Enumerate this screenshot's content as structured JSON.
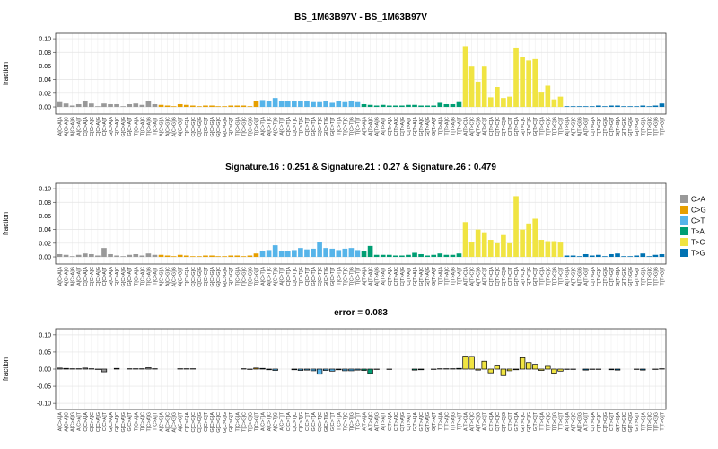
{
  "chart_data": [
    {
      "type": "bar",
      "title": "BS_1M63B97V - BS_1M63B97V",
      "y_label": "fraction",
      "categories": [
        "A[C>A]A",
        "A[C>A]C",
        "A[C>A]G",
        "A[C>A]T",
        "C[C>A]A",
        "C[C>A]C",
        "C[C>A]G",
        "C[C>A]T",
        "G[C>A]A",
        "G[C>A]C",
        "G[C>A]G",
        "G[C>A]T",
        "T[C>A]A",
        "T[C>A]C",
        "T[C>A]G",
        "T[C>A]T",
        "A[C>G]A",
        "A[C>G]C",
        "A[C>G]G",
        "A[C>G]T",
        "C[C>G]A",
        "C[C>G]C",
        "C[C>G]G",
        "C[C>G]T",
        "G[C>G]A",
        "G[C>G]C",
        "G[C>G]G",
        "G[C>G]T",
        "T[C>G]A",
        "T[C>G]C",
        "T[C>G]G",
        "T[C>G]T",
        "A[C>T]A",
        "A[C>T]C",
        "A[C>T]G",
        "A[C>T]T",
        "C[C>T]A",
        "C[C>T]C",
        "C[C>T]G",
        "C[C>T]T",
        "G[C>T]A",
        "G[C>T]C",
        "G[C>T]G",
        "G[C>T]T",
        "T[C>T]A",
        "T[C>T]C",
        "T[C>T]G",
        "T[C>T]T",
        "A[T>A]A",
        "A[T>A]C",
        "A[T>A]G",
        "A[T>A]T",
        "C[T>A]A",
        "C[T>A]C",
        "C[T>A]G",
        "C[T>A]T",
        "G[T>A]A",
        "G[T>A]C",
        "G[T>A]G",
        "G[T>A]T",
        "T[T>A]A",
        "T[T>A]C",
        "T[T>A]G",
        "T[T>A]T",
        "A[T>C]A",
        "A[T>C]C",
        "A[T>C]G",
        "A[T>C]T",
        "C[T>C]A",
        "C[T>C]C",
        "C[T>C]G",
        "C[T>C]T",
        "G[T>C]A",
        "G[T>C]C",
        "G[T>C]G",
        "G[T>C]T",
        "T[T>C]A",
        "T[T>C]C",
        "T[T>C]G",
        "T[T>C]T",
        "A[T>G]A",
        "A[T>G]C",
        "A[T>G]G",
        "A[T>G]T",
        "C[T>G]A",
        "C[T>G]C",
        "C[T>G]G",
        "C[T>G]T",
        "G[T>G]A",
        "G[T>G]C",
        "G[T>G]G",
        "G[T>G]T",
        "T[T>G]A",
        "T[T>G]C",
        "T[T>G]G",
        "T[T>G]T"
      ],
      "values": [
        0.007,
        0.005,
        0.002,
        0.004,
        0.008,
        0.005,
        0.001,
        0.005,
        0.004,
        0.004,
        0.001,
        0.004,
        0.005,
        0.003,
        0.009,
        0.004,
        0.003,
        0.002,
        0.001,
        0.004,
        0.003,
        0.002,
        0.001,
        0.002,
        0.002,
        0.001,
        0.001,
        0.002,
        0.002,
        0.002,
        0.001,
        0.008,
        0.01,
        0.008,
        0.013,
        0.009,
        0.009,
        0.008,
        0.009,
        0.008,
        0.007,
        0.007,
        0.009,
        0.006,
        0.008,
        0.007,
        0.008,
        0.007,
        0.004,
        0.003,
        0.002,
        0.003,
        0.002,
        0.002,
        0.002,
        0.003,
        0.003,
        0.002,
        0.002,
        0.002,
        0.006,
        0.004,
        0.004,
        0.007,
        0.089,
        0.059,
        0.037,
        0.059,
        0.014,
        0.029,
        0.013,
        0.015,
        0.087,
        0.073,
        0.068,
        0.07,
        0.021,
        0.031,
        0.011,
        0.015,
        0.001,
        0.001,
        0.001,
        0.001,
        0.001,
        0.002,
        0.001,
        0.002,
        0.002,
        0.001,
        0.001,
        0.001,
        0.002,
        0.001,
        0.002,
        0.005
      ],
      "colors": [
        "#999999",
        "#E69F00",
        "#56B4E9",
        "#009E73",
        "#F0E442",
        "#0072B2"
      ],
      "ylim": [
        -0.0105,
        0.108
      ],
      "yticks": [
        {
          "value": 0,
          "label": "0.00"
        },
        {
          "value": 0.02,
          "label": "0.02"
        },
        {
          "value": 0.04,
          "label": "0.04"
        },
        {
          "value": 0.06,
          "label": "0.06"
        },
        {
          "value": 0.08,
          "label": "0.08"
        },
        {
          "value": 0.1,
          "label": "0.10"
        }
      ],
      "grid": true
    },
    {
      "type": "bar",
      "title": "Signature.16 : 0.251 & Signature.21 : 0.27 & Signature.26 : 0.479",
      "y_label": "fraction",
      "categories": [
        "A[C>A]A",
        "A[C>A]C",
        "A[C>A]G",
        "A[C>A]T",
        "C[C>A]A",
        "C[C>A]C",
        "C[C>A]G",
        "C[C>A]T",
        "G[C>A]A",
        "G[C>A]C",
        "G[C>A]G",
        "G[C>A]T",
        "T[C>A]A",
        "T[C>A]C",
        "T[C>A]G",
        "T[C>A]T",
        "A[C>G]A",
        "A[C>G]C",
        "A[C>G]G",
        "A[C>G]T",
        "C[C>G]A",
        "C[C>G]C",
        "C[C>G]G",
        "C[C>G]T",
        "G[C>G]A",
        "G[C>G]C",
        "G[C>G]G",
        "G[C>G]T",
        "T[C>G]A",
        "T[C>G]C",
        "T[C>G]G",
        "T[C>G]T",
        "A[C>T]A",
        "A[C>T]C",
        "A[C>T]G",
        "A[C>T]T",
        "C[C>T]A",
        "C[C>T]C",
        "C[C>T]G",
        "C[C>T]T",
        "G[C>T]A",
        "G[C>T]C",
        "G[C>T]G",
        "G[C>T]T",
        "T[C>T]A",
        "T[C>T]C",
        "T[C>T]G",
        "T[C>T]T",
        "A[T>A]A",
        "A[T>A]C",
        "A[T>A]G",
        "A[T>A]T",
        "C[T>A]A",
        "C[T>A]C",
        "C[T>A]G",
        "C[T>A]T",
        "G[T>A]A",
        "G[T>A]C",
        "G[T>A]G",
        "G[T>A]T",
        "T[T>A]A",
        "T[T>A]C",
        "T[T>A]G",
        "T[T>A]T",
        "A[T>C]A",
        "A[T>C]C",
        "A[T>C]G",
        "A[T>C]T",
        "C[T>C]A",
        "C[T>C]C",
        "C[T>C]G",
        "C[T>C]T",
        "G[T>C]A",
        "G[T>C]C",
        "G[T>C]G",
        "G[T>C]T",
        "T[T>C]A",
        "T[T>C]C",
        "T[T>C]G",
        "T[T>C]T",
        "A[T>G]A",
        "A[T>G]C",
        "A[T>G]G",
        "A[T>G]T",
        "C[T>G]A",
        "C[T>G]C",
        "C[T>G]G",
        "C[T>G]T",
        "G[T>G]A",
        "G[T>G]C",
        "G[T>G]G",
        "G[T>G]T",
        "T[T>G]A",
        "T[T>G]C",
        "T[T>G]G",
        "T[T>G]T"
      ],
      "values": [
        0.004,
        0.003,
        0.001,
        0.003,
        0.005,
        0.004,
        0.002,
        0.013,
        0.004,
        0.002,
        0.001,
        0.003,
        0.004,
        0.002,
        0.005,
        0.003,
        0.003,
        0.002,
        0.001,
        0.003,
        0.002,
        0.001,
        0.001,
        0.002,
        0.002,
        0.001,
        0.001,
        0.002,
        0.002,
        0.001,
        0.002,
        0.005,
        0.008,
        0.01,
        0.017,
        0.009,
        0.009,
        0.01,
        0.013,
        0.011,
        0.012,
        0.022,
        0.013,
        0.012,
        0.01,
        0.012,
        0.013,
        0.01,
        0.008,
        0.016,
        0.003,
        0.003,
        0.003,
        0.002,
        0.002,
        0.003,
        0.006,
        0.004,
        0.002,
        0.003,
        0.005,
        0.003,
        0.003,
        0.005,
        0.051,
        0.022,
        0.04,
        0.036,
        0.025,
        0.02,
        0.032,
        0.02,
        0.089,
        0.04,
        0.049,
        0.056,
        0.025,
        0.023,
        0.023,
        0.021,
        0.002,
        0.002,
        0.001,
        0.004,
        0.002,
        0.003,
        0.001,
        0.004,
        0.005,
        0.001,
        0.001,
        0.002,
        0.005,
        0.001,
        0.003,
        0.004
      ],
      "colors": [
        "#999999",
        "#E69F00",
        "#56B4E9",
        "#009E73",
        "#F0E442",
        "#0072B2"
      ],
      "legend": [
        "C>A",
        "C>G",
        "C>T",
        "T>A",
        "T>C",
        "T>G"
      ],
      "ylim": [
        -0.0105,
        0.108
      ],
      "yticks": [
        {
          "value": 0,
          "label": "0.00"
        },
        {
          "value": 0.02,
          "label": "0.02"
        },
        {
          "value": 0.04,
          "label": "0.04"
        },
        {
          "value": 0.06,
          "label": "0.06"
        },
        {
          "value": 0.08,
          "label": "0.08"
        },
        {
          "value": 0.1,
          "label": "0.10"
        }
      ],
      "grid": true
    },
    {
      "type": "bar",
      "title": "error = 0.083",
      "y_label": "fraction",
      "categories": [
        "A[C>A]A",
        "A[C>A]C",
        "A[C>A]G",
        "A[C>A]T",
        "C[C>A]A",
        "C[C>A]C",
        "C[C>A]G",
        "C[C>A]T",
        "G[C>A]A",
        "G[C>A]C",
        "G[C>A]G",
        "G[C>A]T",
        "T[C>A]A",
        "T[C>A]C",
        "T[C>A]G",
        "T[C>A]T",
        "A[C>G]A",
        "A[C>G]C",
        "A[C>G]G",
        "A[C>G]T",
        "C[C>G]A",
        "C[C>G]C",
        "C[C>G]G",
        "C[C>G]T",
        "G[C>G]A",
        "G[C>G]C",
        "G[C>G]G",
        "G[C>G]T",
        "T[C>G]A",
        "T[C>G]C",
        "T[C>G]G",
        "T[C>G]T",
        "A[C>T]A",
        "A[C>T]C",
        "A[C>T]G",
        "A[C>T]T",
        "C[C>T]A",
        "C[C>T]C",
        "C[C>T]G",
        "C[C>T]T",
        "G[C>T]A",
        "G[C>T]C",
        "G[C>T]G",
        "G[C>T]T",
        "T[C>T]A",
        "T[C>T]C",
        "T[C>T]G",
        "T[C>T]T",
        "A[T>A]A",
        "A[T>A]C",
        "A[T>A]G",
        "A[T>A]T",
        "C[T>A]A",
        "C[T>A]C",
        "C[T>A]G",
        "C[T>A]T",
        "G[T>A]A",
        "G[T>A]C",
        "G[T>A]G",
        "G[T>A]T",
        "T[T>A]A",
        "T[T>A]C",
        "T[T>A]G",
        "T[T>A]T",
        "A[T>C]A",
        "A[T>C]C",
        "A[T>C]G",
        "A[T>C]T",
        "C[T>C]A",
        "C[T>C]C",
        "C[T>C]G",
        "C[T>C]T",
        "G[T>C]A",
        "G[T>C]C",
        "G[T>C]G",
        "G[T>C]T",
        "T[T>C]A",
        "T[T>C]C",
        "T[T>C]G",
        "T[T>C]T",
        "A[T>G]A",
        "A[T>G]C",
        "A[T>G]G",
        "A[T>G]T",
        "C[T>G]A",
        "C[T>G]C",
        "C[T>G]G",
        "C[T>G]T",
        "G[T>G]A",
        "G[T>G]C",
        "G[T>G]G",
        "G[T>G]T",
        "T[T>G]A",
        "T[T>G]C",
        "T[T>G]G",
        "T[T>G]T"
      ],
      "values": [
        0.003,
        0.002,
        0.001,
        0.001,
        0.003,
        0.001,
        -0.001,
        -0.008,
        0,
        0.002,
        0,
        0.001,
        0.001,
        0.001,
        0.004,
        0.001,
        0,
        0,
        0,
        0.001,
        0.001,
        0.001,
        0,
        0,
        0,
        0,
        0,
        0,
        0,
        0.001,
        -0.001,
        0.003,
        0.002,
        -0.002,
        -0.004,
        0,
        0,
        -0.002,
        -0.004,
        -0.003,
        -0.005,
        -0.015,
        -0.004,
        -0.006,
        -0.002,
        -0.005,
        -0.005,
        -0.003,
        -0.004,
        -0.013,
        -0.001,
        0,
        -0.001,
        0,
        0,
        0,
        -0.003,
        -0.002,
        0,
        -0.001,
        0.001,
        0.001,
        0.001,
        0.002,
        0.038,
        0.037,
        -0.003,
        0.023,
        -0.011,
        0.009,
        -0.019,
        -0.005,
        -0.002,
        0.033,
        0.019,
        0.014,
        -0.004,
        0.008,
        -0.012,
        -0.006,
        -0.001,
        -0.001,
        0,
        -0.003,
        -0.001,
        -0.001,
        0,
        -0.002,
        -0.003,
        0,
        0,
        -0.001,
        -0.003,
        0,
        -0.001,
        0.001
      ],
      "colors": [
        "#999999",
        "#E69F00",
        "#56B4E9",
        "#009E73",
        "#F0E442",
        "#0072B2"
      ],
      "bar_outline": "#000000",
      "ylim": [
        -0.118,
        0.118
      ],
      "yticks": [
        {
          "value": -0.1,
          "label": "-0.10"
        },
        {
          "value": -0.05,
          "label": "-0.05"
        },
        {
          "value": 0,
          "label": "0.00"
        },
        {
          "value": 0.05,
          "label": "0.05"
        },
        {
          "value": 0.1,
          "label": "0.10"
        }
      ],
      "grid": true
    }
  ]
}
